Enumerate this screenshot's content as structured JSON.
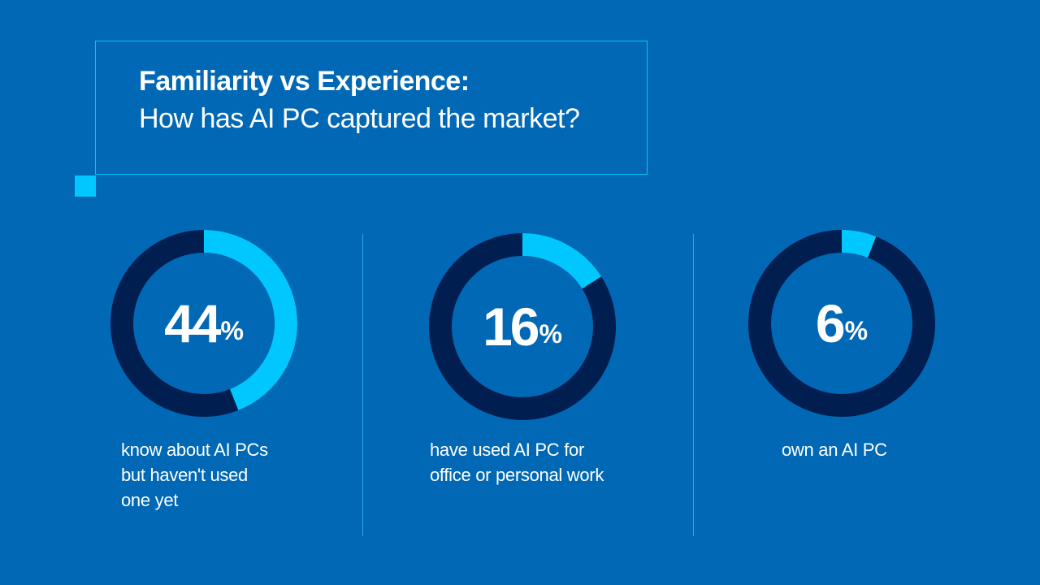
{
  "title": {
    "line1": "Familiarity vs Experience:",
    "line2": "How has AI PC captured the market?"
  },
  "colors": {
    "background": "#0068b5",
    "accent": "#00c7fd",
    "ring_track": "#001e50",
    "text": "#ffffff"
  },
  "chart_data": {
    "type": "pie",
    "title": "Familiarity vs Experience: How has AI PC captured the market?",
    "unit": "%",
    "items": [
      {
        "value": 44,
        "caption": [
          "know about AI PCs",
          "but haven't used",
          "one yet"
        ]
      },
      {
        "value": 16,
        "caption": [
          "have used AI PC for",
          "office or personal work"
        ]
      },
      {
        "value": 6,
        "caption": [
          "own an AI PC"
        ]
      }
    ]
  }
}
